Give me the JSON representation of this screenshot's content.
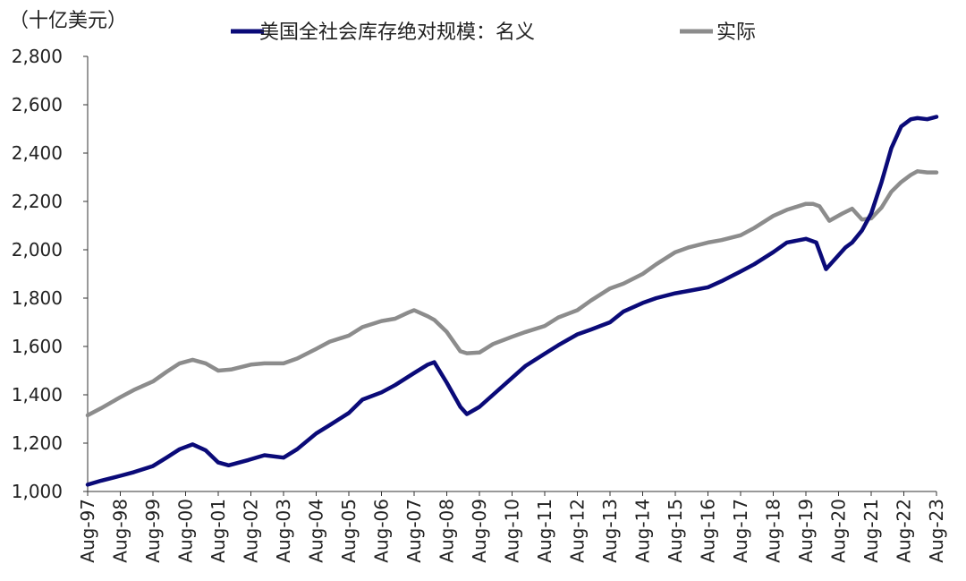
{
  "chart_data": {
    "type": "line",
    "unit_label": "（十亿美元）",
    "y_ticks": [
      "1,000",
      "1,200",
      "1,400",
      "1,600",
      "1,800",
      "2,000",
      "2,200",
      "2,400",
      "2,600",
      "2,800"
    ],
    "ylim": [
      1000,
      2800
    ],
    "x_ticks": [
      "Aug-97",
      "Aug-98",
      "Aug-99",
      "Aug-00",
      "Aug-01",
      "Aug-02",
      "Aug-03",
      "Aug-04",
      "Aug-05",
      "Aug-06",
      "Aug-07",
      "Aug-08",
      "Aug-09",
      "Aug-10",
      "Aug-11",
      "Aug-12",
      "Aug-13",
      "Aug-14",
      "Aug-15",
      "Aug-16",
      "Aug-17",
      "Aug-18",
      "Aug-19",
      "Aug-20",
      "Aug-21",
      "Aug-22",
      "Aug-23"
    ],
    "xlim": [
      1997.583,
      2023.583
    ],
    "grid": false,
    "legend_position": "top",
    "series": [
      {
        "name": "美国全社会库存绝对规模：名义",
        "color": "#0a0a78",
        "x": [
          1997.583,
          1998.0,
          1998.583,
          1999.0,
          1999.583,
          2000.0,
          2000.4,
          2000.8,
          2001.2,
          2001.583,
          2001.9,
          2002.5,
          2003.0,
          2003.583,
          2004.0,
          2004.583,
          2005.0,
          2005.583,
          2006.0,
          2006.583,
          2007.0,
          2007.583,
          2008.0,
          2008.2,
          2008.583,
          2009.0,
          2009.2,
          2009.583,
          2010.0,
          2010.583,
          2011.0,
          2011.583,
          2012.0,
          2012.583,
          2013.0,
          2013.583,
          2014.0,
          2014.583,
          2015.0,
          2015.583,
          2016.0,
          2016.583,
          2017.0,
          2017.583,
          2018.0,
          2018.583,
          2019.0,
          2019.583,
          2019.9,
          2020.2,
          2020.4,
          2020.8,
          2021.0,
          2021.3,
          2021.583,
          2021.9,
          2022.2,
          2022.5,
          2022.8,
          2023.0,
          2023.3,
          2023.583
        ],
        "y": [
          1028,
          1045,
          1065,
          1080,
          1105,
          1140,
          1175,
          1195,
          1170,
          1120,
          1108,
          1130,
          1150,
          1140,
          1175,
          1240,
          1275,
          1325,
          1380,
          1410,
          1440,
          1490,
          1525,
          1535,
          1450,
          1350,
          1320,
          1350,
          1400,
          1470,
          1520,
          1570,
          1605,
          1650,
          1670,
          1700,
          1745,
          1780,
          1800,
          1820,
          1830,
          1845,
          1870,
          1910,
          1940,
          1990,
          2030,
          2045,
          2030,
          1920,
          1950,
          2010,
          2030,
          2080,
          2150,
          2280,
          2420,
          2510,
          2540,
          2545,
          2540,
          2550
        ]
      },
      {
        "name": "实际",
        "color": "#8c8c8c",
        "x": [
          1997.583,
          1998.0,
          1998.583,
          1999.0,
          1999.583,
          2000.0,
          2000.4,
          2000.8,
          2001.2,
          2001.583,
          2002.0,
          2002.583,
          2003.0,
          2003.583,
          2004.0,
          2004.583,
          2005.0,
          2005.583,
          2006.0,
          2006.583,
          2007.0,
          2007.4,
          2007.583,
          2008.0,
          2008.2,
          2008.583,
          2009.0,
          2009.2,
          2009.583,
          2010.0,
          2010.583,
          2011.0,
          2011.583,
          2012.0,
          2012.583,
          2013.0,
          2013.583,
          2014.0,
          2014.583,
          2015.0,
          2015.583,
          2016.0,
          2016.583,
          2017.0,
          2017.583,
          2018.0,
          2018.583,
          2019.0,
          2019.583,
          2019.8,
          2020.0,
          2020.3,
          2020.7,
          2021.0,
          2021.3,
          2021.583,
          2021.9,
          2022.2,
          2022.5,
          2022.8,
          2023.0,
          2023.3,
          2023.583
        ],
        "y": [
          1315,
          1345,
          1390,
          1420,
          1455,
          1495,
          1530,
          1545,
          1530,
          1500,
          1505,
          1525,
          1530,
          1530,
          1550,
          1590,
          1620,
          1645,
          1680,
          1705,
          1715,
          1740,
          1750,
          1725,
          1710,
          1660,
          1580,
          1572,
          1575,
          1610,
          1640,
          1660,
          1685,
          1720,
          1750,
          1790,
          1840,
          1860,
          1900,
          1940,
          1990,
          2010,
          2030,
          2040,
          2060,
          2090,
          2140,
          2165,
          2190,
          2190,
          2180,
          2120,
          2150,
          2170,
          2125,
          2130,
          2175,
          2240,
          2280,
          2310,
          2325,
          2320,
          2320
        ]
      }
    ]
  }
}
